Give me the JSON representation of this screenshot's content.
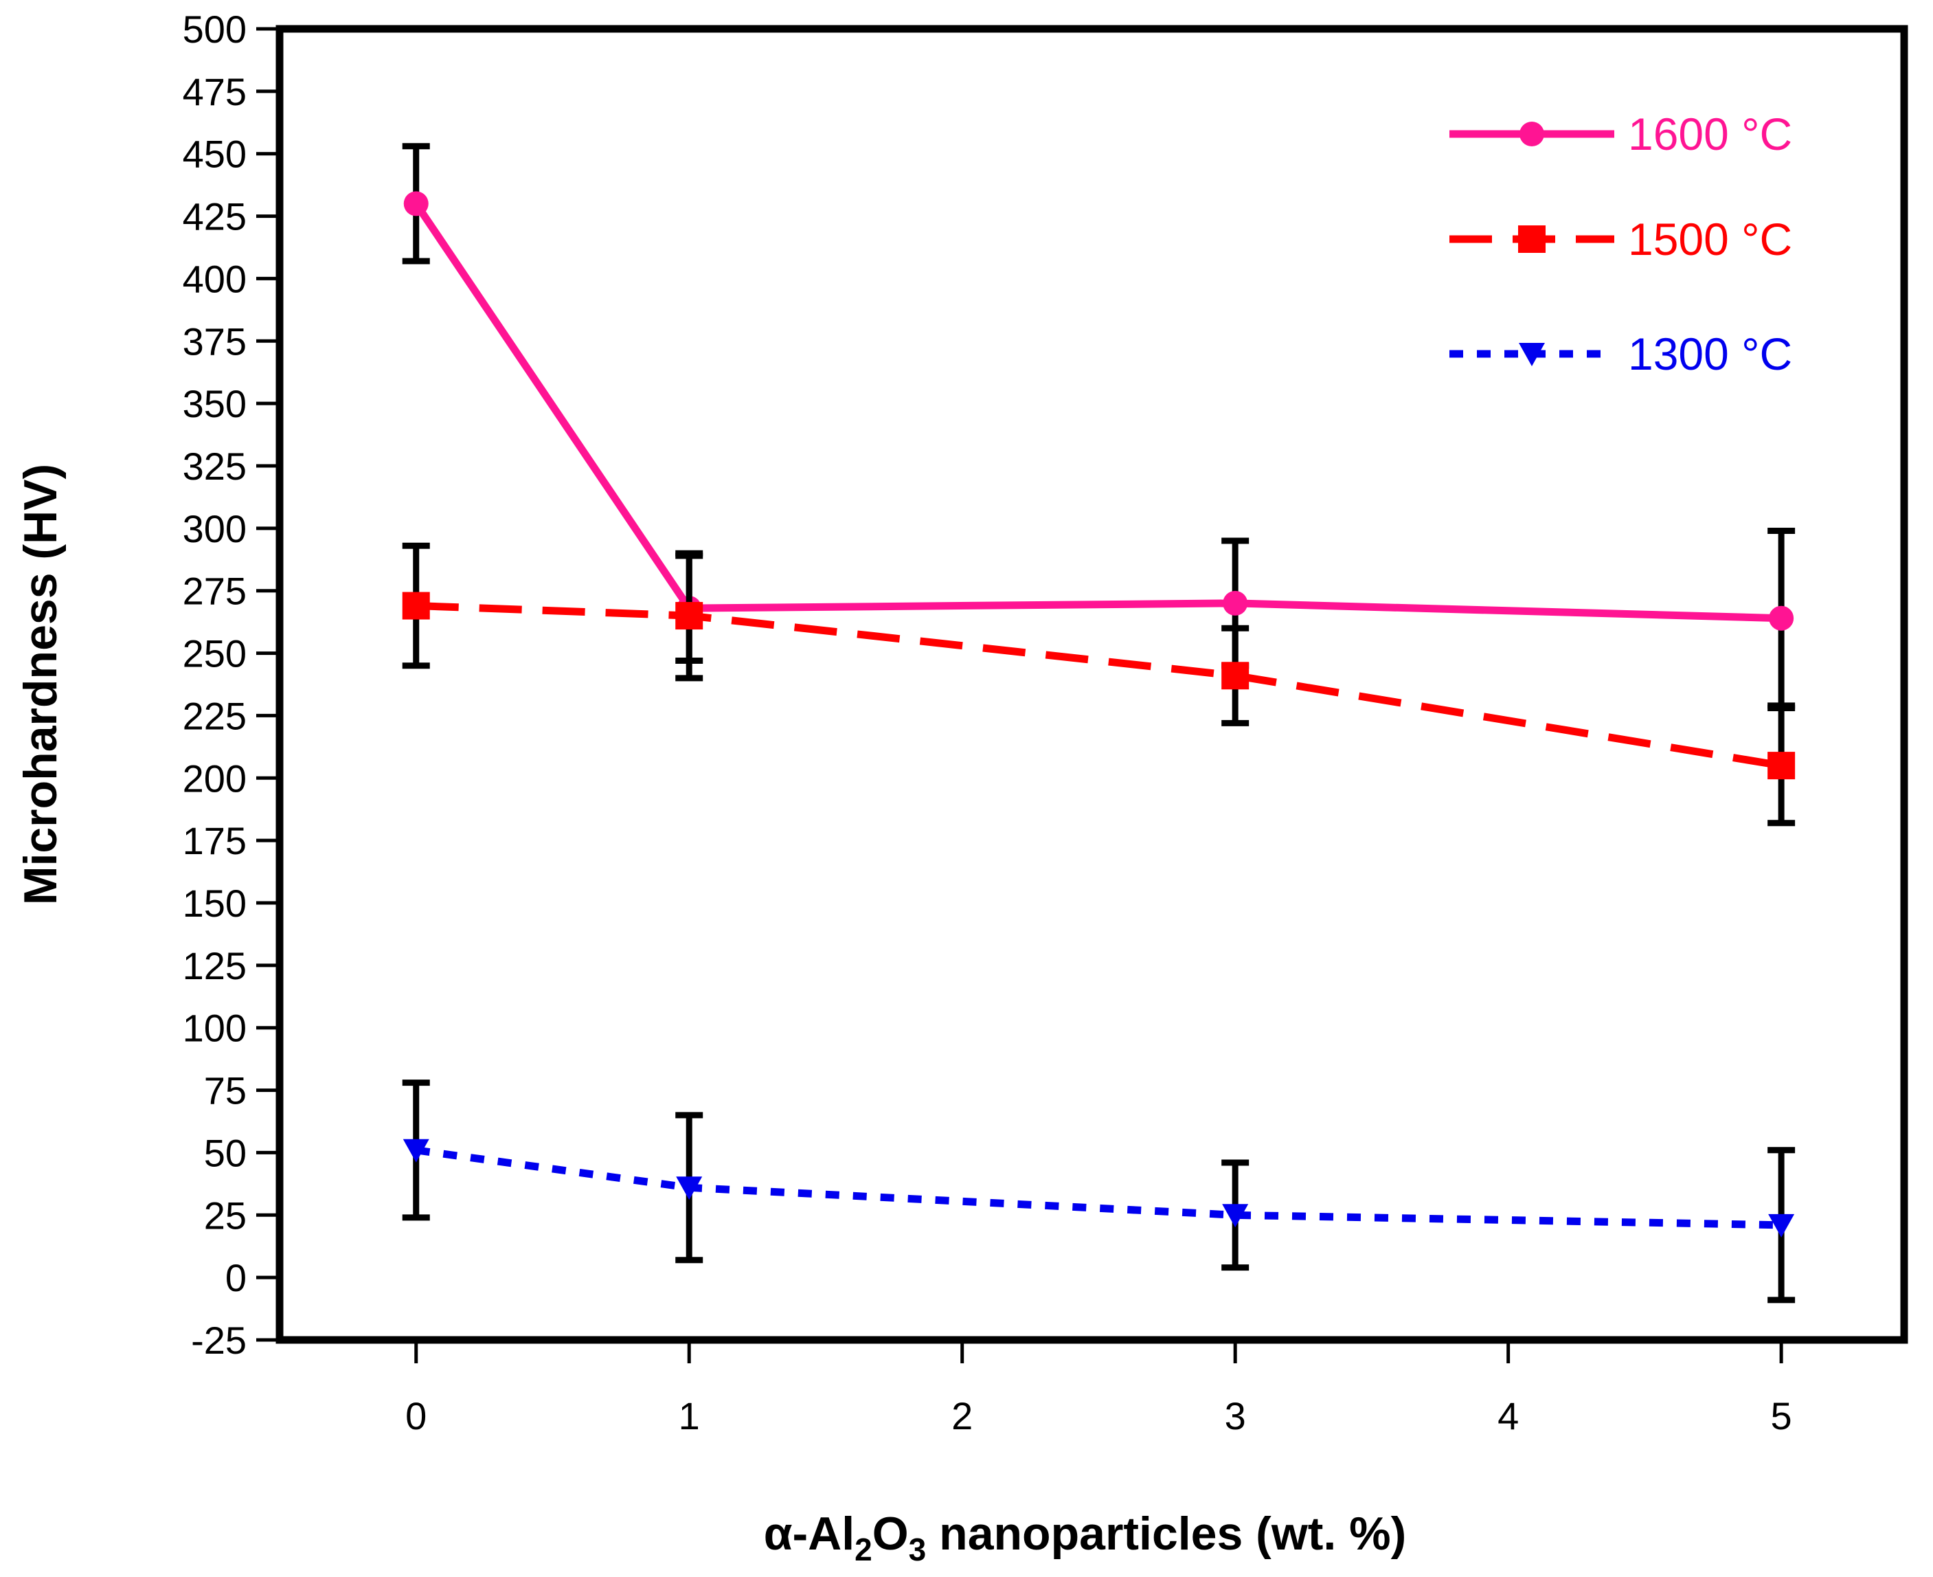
{
  "chart_data": {
    "type": "line",
    "xlabel_parts": [
      "α-Al",
      "2",
      "O",
      "3",
      " nanoparticles (wt. %)"
    ],
    "ylabel": "Microhardness (HV)",
    "xlim": [
      -0.5,
      5.45
    ],
    "ylim": [
      -25,
      500
    ],
    "x_ticks": [
      0,
      1,
      2,
      3,
      4,
      5
    ],
    "y_ticks": [
      -25,
      0,
      25,
      50,
      75,
      100,
      125,
      150,
      175,
      200,
      225,
      250,
      275,
      300,
      325,
      350,
      375,
      400,
      425,
      450,
      475,
      500
    ],
    "legend_position": "top-right",
    "series": [
      {
        "name": "1600 °C",
        "color": "#ff1493",
        "marker": "circle",
        "line_style": "solid",
        "x": [
          0,
          1,
          3,
          5
        ],
        "y": [
          430,
          268,
          270,
          264
        ],
        "err": [
          23,
          21,
          25,
          35
        ]
      },
      {
        "name": "1500 °C",
        "color": "#ff0000",
        "marker": "square",
        "line_style": "dashed",
        "x": [
          0,
          1,
          3,
          5
        ],
        "y": [
          269,
          265,
          241,
          205
        ],
        "err": [
          24,
          25,
          19,
          23
        ]
      },
      {
        "name": "1300 °C",
        "color": "#0000ee",
        "marker": "triangle-down",
        "line_style": "dotted",
        "x": [
          0,
          1,
          3,
          5
        ],
        "y": [
          51,
          36,
          25,
          21
        ],
        "err": [
          27,
          29,
          21,
          30
        ]
      }
    ]
  }
}
